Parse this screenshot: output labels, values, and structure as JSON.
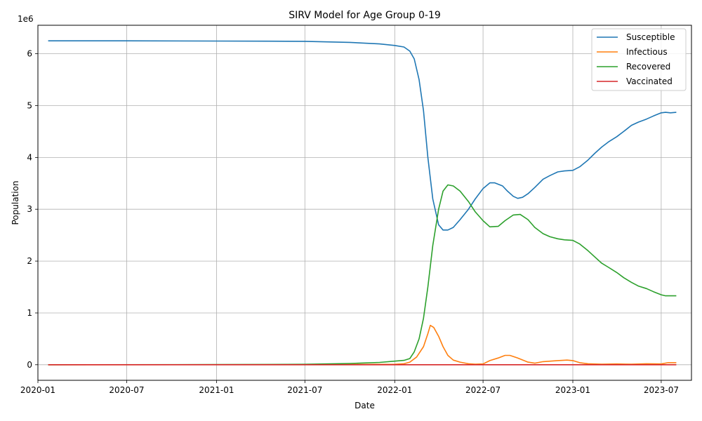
{
  "chart_data": {
    "type": "line",
    "title": "SIRV Model for Age Group 0-19",
    "xlabel": "Date",
    "ylabel": "Population",
    "y_offset_label": "1e6",
    "x_range": [
      "2020-01",
      "2023-09"
    ],
    "ylim": [
      -300000,
      6550000
    ],
    "grid": true,
    "legend_position": "top-right",
    "x_ticks": [
      "2020-01",
      "2020-07",
      "2021-01",
      "2021-07",
      "2022-01",
      "2022-07",
      "2023-01",
      "2023-07"
    ],
    "y_ticks": [
      0,
      1000000,
      2000000,
      3000000,
      4000000,
      5000000,
      6000000
    ],
    "y_tick_labels": [
      "0",
      "1",
      "2",
      "3",
      "4",
      "5",
      "6"
    ],
    "series": [
      {
        "name": "Susceptible",
        "color": "#1f77b4",
        "points": [
          [
            "2020-01-22",
            6250000
          ],
          [
            "2020-07-01",
            6250000
          ],
          [
            "2021-01-01",
            6245000
          ],
          [
            "2021-07-01",
            6240000
          ],
          [
            "2021-10-01",
            6220000
          ],
          [
            "2021-12-01",
            6190000
          ],
          [
            "2022-01-01",
            6160000
          ],
          [
            "2022-01-20",
            6130000
          ],
          [
            "2022-02-01",
            6050000
          ],
          [
            "2022-02-10",
            5900000
          ],
          [
            "2022-02-20",
            5500000
          ],
          [
            "2022-03-01",
            4900000
          ],
          [
            "2022-03-10",
            4000000
          ],
          [
            "2022-03-20",
            3200000
          ],
          [
            "2022-04-01",
            2700000
          ],
          [
            "2022-04-10",
            2600000
          ],
          [
            "2022-04-20",
            2600000
          ],
          [
            "2022-05-01",
            2650000
          ],
          [
            "2022-05-15",
            2800000
          ],
          [
            "2022-06-01",
            3000000
          ],
          [
            "2022-06-15",
            3200000
          ],
          [
            "2022-07-01",
            3400000
          ],
          [
            "2022-07-15",
            3510000
          ],
          [
            "2022-07-25",
            3510000
          ],
          [
            "2022-08-10",
            3450000
          ],
          [
            "2022-08-20",
            3350000
          ],
          [
            "2022-09-01",
            3250000
          ],
          [
            "2022-09-10",
            3210000
          ],
          [
            "2022-09-20",
            3230000
          ],
          [
            "2022-10-01",
            3300000
          ],
          [
            "2022-10-15",
            3420000
          ],
          [
            "2022-11-01",
            3580000
          ],
          [
            "2022-11-15",
            3650000
          ],
          [
            "2022-12-01",
            3720000
          ],
          [
            "2022-12-15",
            3740000
          ],
          [
            "2023-01-01",
            3750000
          ],
          [
            "2023-01-15",
            3820000
          ],
          [
            "2023-02-01",
            3950000
          ],
          [
            "2023-02-15",
            4080000
          ],
          [
            "2023-03-01",
            4200000
          ],
          [
            "2023-03-15",
            4300000
          ],
          [
            "2023-04-01",
            4400000
          ],
          [
            "2023-04-15",
            4500000
          ],
          [
            "2023-05-01",
            4620000
          ],
          [
            "2023-05-15",
            4680000
          ],
          [
            "2023-06-01",
            4740000
          ],
          [
            "2023-06-15",
            4800000
          ],
          [
            "2023-07-01",
            4860000
          ],
          [
            "2023-07-10",
            4870000
          ],
          [
            "2023-07-20",
            4860000
          ],
          [
            "2023-08-01",
            4870000
          ]
        ]
      },
      {
        "name": "Infectious",
        "color": "#ff7f0e",
        "points": [
          [
            "2020-01-22",
            0
          ],
          [
            "2021-07-01",
            2000
          ],
          [
            "2022-01-01",
            8000
          ],
          [
            "2022-01-20",
            20000
          ],
          [
            "2022-02-01",
            50000
          ],
          [
            "2022-02-15",
            150000
          ],
          [
            "2022-03-01",
            350000
          ],
          [
            "2022-03-10",
            600000
          ],
          [
            "2022-03-15",
            760000
          ],
          [
            "2022-03-22",
            720000
          ],
          [
            "2022-04-01",
            550000
          ],
          [
            "2022-04-10",
            350000
          ],
          [
            "2022-04-20",
            180000
          ],
          [
            "2022-05-01",
            90000
          ],
          [
            "2022-05-15",
            50000
          ],
          [
            "2022-06-01",
            20000
          ],
          [
            "2022-06-15",
            10000
          ],
          [
            "2022-07-01",
            15000
          ],
          [
            "2022-07-15",
            80000
          ],
          [
            "2022-08-01",
            130000
          ],
          [
            "2022-08-15",
            180000
          ],
          [
            "2022-08-25",
            180000
          ],
          [
            "2022-09-10",
            130000
          ],
          [
            "2022-10-01",
            50000
          ],
          [
            "2022-10-15",
            30000
          ],
          [
            "2022-11-01",
            60000
          ],
          [
            "2022-12-01",
            80000
          ],
          [
            "2022-12-20",
            90000
          ],
          [
            "2023-01-01",
            80000
          ],
          [
            "2023-01-15",
            40000
          ],
          [
            "2023-02-01",
            20000
          ],
          [
            "2023-03-01",
            10000
          ],
          [
            "2023-04-01",
            15000
          ],
          [
            "2023-05-01",
            10000
          ],
          [
            "2023-06-01",
            20000
          ],
          [
            "2023-07-01",
            15000
          ],
          [
            "2023-07-15",
            40000
          ],
          [
            "2023-08-01",
            40000
          ]
        ]
      },
      {
        "name": "Recovered",
        "color": "#2ca02c",
        "points": [
          [
            "2020-01-22",
            0
          ],
          [
            "2021-01-01",
            3000
          ],
          [
            "2021-07-01",
            8000
          ],
          [
            "2021-10-01",
            25000
          ],
          [
            "2021-12-01",
            45000
          ],
          [
            "2022-01-01",
            70000
          ],
          [
            "2022-01-20",
            85000
          ],
          [
            "2022-02-01",
            120000
          ],
          [
            "2022-02-10",
            250000
          ],
          [
            "2022-02-20",
            500000
          ],
          [
            "2022-03-01",
            900000
          ],
          [
            "2022-03-10",
            1500000
          ],
          [
            "2022-03-20",
            2300000
          ],
          [
            "2022-04-01",
            3000000
          ],
          [
            "2022-04-10",
            3350000
          ],
          [
            "2022-04-20",
            3470000
          ],
          [
            "2022-05-01",
            3450000
          ],
          [
            "2022-05-15",
            3350000
          ],
          [
            "2022-06-01",
            3150000
          ],
          [
            "2022-06-15",
            2950000
          ],
          [
            "2022-07-01",
            2780000
          ],
          [
            "2022-07-15",
            2660000
          ],
          [
            "2022-08-01",
            2670000
          ],
          [
            "2022-08-15",
            2780000
          ],
          [
            "2022-09-01",
            2890000
          ],
          [
            "2022-09-15",
            2900000
          ],
          [
            "2022-10-01",
            2800000
          ],
          [
            "2022-10-15",
            2650000
          ],
          [
            "2022-11-01",
            2530000
          ],
          [
            "2022-11-15",
            2470000
          ],
          [
            "2022-12-01",
            2430000
          ],
          [
            "2022-12-15",
            2410000
          ],
          [
            "2023-01-01",
            2400000
          ],
          [
            "2023-01-15",
            2330000
          ],
          [
            "2023-02-01",
            2200000
          ],
          [
            "2023-02-15",
            2080000
          ],
          [
            "2023-03-01",
            1960000
          ],
          [
            "2023-03-15",
            1880000
          ],
          [
            "2023-04-01",
            1780000
          ],
          [
            "2023-04-15",
            1680000
          ],
          [
            "2023-05-01",
            1590000
          ],
          [
            "2023-05-15",
            1520000
          ],
          [
            "2023-06-01",
            1470000
          ],
          [
            "2023-06-15",
            1410000
          ],
          [
            "2023-07-01",
            1350000
          ],
          [
            "2023-07-10",
            1330000
          ],
          [
            "2023-08-01",
            1330000
          ]
        ]
      },
      {
        "name": "Vaccinated",
        "color": "#d62728",
        "points": [
          [
            "2020-01-22",
            0
          ],
          [
            "2023-08-01",
            0
          ]
        ]
      }
    ]
  }
}
